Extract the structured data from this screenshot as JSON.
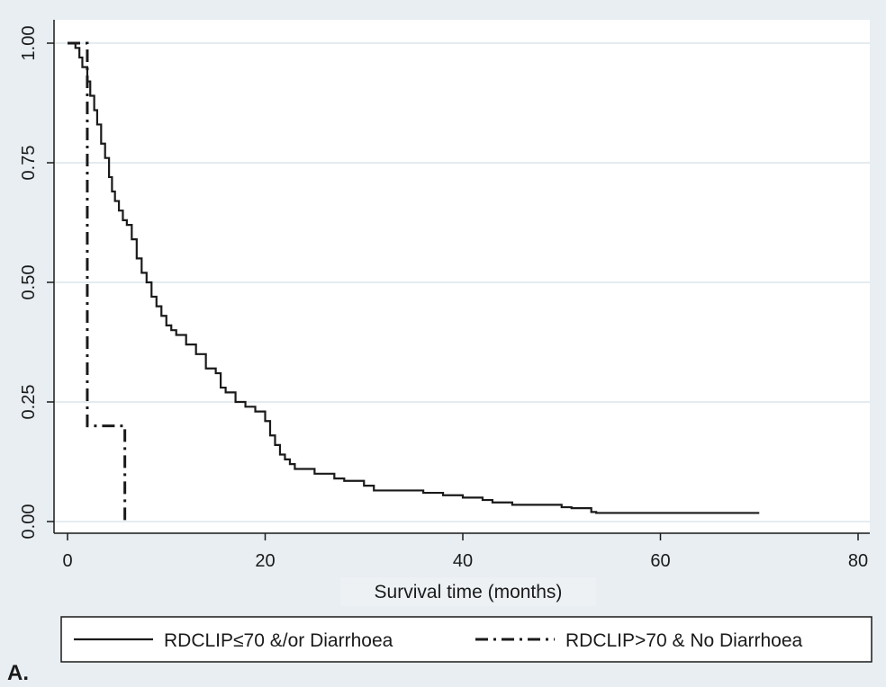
{
  "chart_data": {
    "type": "line",
    "title": "",
    "xlabel": "Survival time (months)",
    "ylabel": "",
    "xlim": [
      0,
      80
    ],
    "ylim": [
      0,
      1
    ],
    "xticks": [
      0,
      20,
      40,
      60,
      80
    ],
    "yticks": [
      0,
      0.25,
      0.5,
      0.75,
      1
    ],
    "xtick_labels": [
      "0",
      "20",
      "40",
      "60",
      "80"
    ],
    "ytick_labels": [
      "0.00",
      "0.25",
      "0.50",
      "0.75",
      "1.00"
    ],
    "grid": true,
    "legend_position": "bottom",
    "panel_label": "A.",
    "series": [
      {
        "name": "RDCLIP≤70 &/or Diarrhoea",
        "line_style": "solid",
        "color": "#1a1a1a",
        "x": [
          0,
          0.8,
          1.2,
          1.5,
          2.0,
          2.3,
          2.7,
          3.0,
          3.4,
          3.8,
          4.2,
          4.5,
          4.8,
          5.2,
          5.6,
          6.0,
          6.5,
          7.0,
          7.5,
          8.0,
          8.5,
          9.0,
          9.5,
          10.0,
          10.5,
          11.0,
          12.0,
          13.0,
          14.0,
          15.0,
          15.5,
          16.0,
          17.0,
          18.0,
          19.0,
          20.0,
          20.5,
          21.0,
          21.5,
          22.0,
          22.5,
          23.0,
          25.0,
          27.0,
          28.0,
          30.0,
          31.0,
          35.0,
          36.0,
          38.0,
          40.0,
          42.0,
          43.0,
          45.0,
          50.0,
          51.0,
          53.0,
          53.5,
          60.0,
          70.0
        ],
        "y": [
          1.0,
          0.99,
          0.97,
          0.95,
          0.92,
          0.89,
          0.86,
          0.83,
          0.79,
          0.76,
          0.72,
          0.69,
          0.67,
          0.65,
          0.63,
          0.62,
          0.59,
          0.55,
          0.52,
          0.5,
          0.47,
          0.45,
          0.43,
          0.41,
          0.4,
          0.39,
          0.37,
          0.35,
          0.32,
          0.31,
          0.28,
          0.27,
          0.25,
          0.24,
          0.23,
          0.21,
          0.18,
          0.16,
          0.14,
          0.13,
          0.12,
          0.11,
          0.1,
          0.09,
          0.085,
          0.075,
          0.065,
          0.065,
          0.06,
          0.055,
          0.05,
          0.045,
          0.04,
          0.035,
          0.03,
          0.028,
          0.02,
          0.018,
          0.018,
          0.018
        ]
      },
      {
        "name": "RDCLIP>70 & No Diarrhoea",
        "line_style": "dash-dot",
        "color": "#1a1a1a",
        "x": [
          0,
          2.0,
          2.0,
          5.8,
          5.8
        ],
        "y": [
          1.0,
          1.0,
          0.2,
          0.2,
          0.0
        ]
      }
    ]
  }
}
